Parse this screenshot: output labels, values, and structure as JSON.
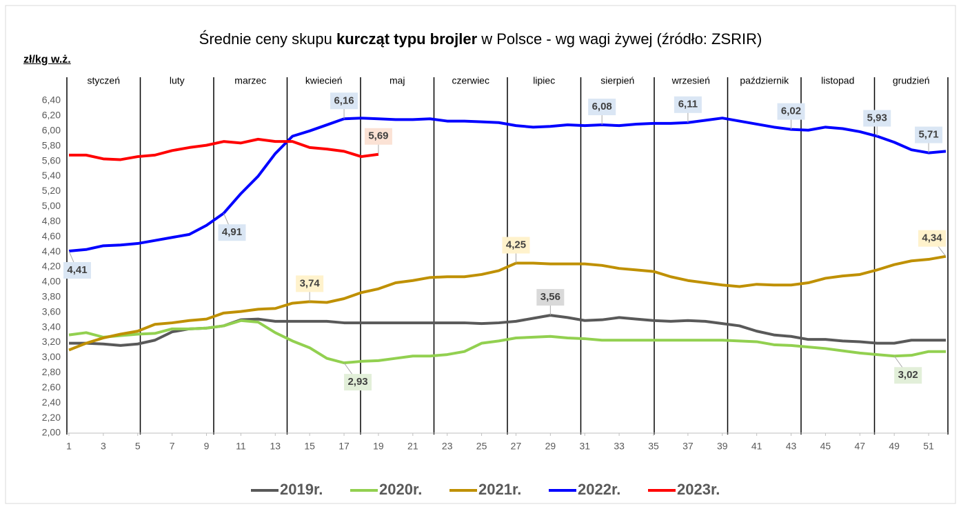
{
  "chart_data": {
    "type": "line",
    "title_parts": [
      "Średnie ceny skupu ",
      "kurcząt typu brojler",
      " w Polsce - wg wagi żywej (źródło: ZSRIR)"
    ],
    "y_label": "zł/kg w.ż.",
    "months": [
      "styczeń",
      "luty",
      "marzec",
      "kwiecień",
      "maj",
      "czerwiec",
      "lipiec",
      "sierpień",
      "wrzesień",
      "październik",
      "listopad",
      "grudzień"
    ],
    "x": [
      1,
      2,
      3,
      4,
      5,
      6,
      7,
      8,
      9,
      10,
      11,
      12,
      13,
      14,
      15,
      16,
      17,
      18,
      19,
      20,
      21,
      22,
      23,
      24,
      25,
      26,
      27,
      28,
      29,
      30,
      31,
      32,
      33,
      34,
      35,
      36,
      37,
      38,
      39,
      40,
      41,
      42,
      43,
      44,
      45,
      46,
      47,
      48,
      49,
      50,
      51,
      52
    ],
    "xlim": [
      1,
      52
    ],
    "xticks": [
      1,
      3,
      5,
      7,
      9,
      11,
      13,
      15,
      17,
      19,
      21,
      23,
      25,
      27,
      29,
      31,
      33,
      35,
      37,
      39,
      41,
      43,
      45,
      47,
      49,
      51
    ],
    "ylim": [
      2,
      6.4
    ],
    "yticks": [
      {
        "value": 2,
        "label": "2,00"
      },
      {
        "value": 2.2,
        "label": "2,20"
      },
      {
        "value": 2.4,
        "label": "2,40"
      },
      {
        "value": 2.6,
        "label": "2,60"
      },
      {
        "value": 2.8,
        "label": "2,80"
      },
      {
        "value": 3,
        "label": "3,00"
      },
      {
        "value": 3.2,
        "label": "3,20"
      },
      {
        "value": 3.4,
        "label": "3,40"
      },
      {
        "value": 3.6,
        "label": "3,60"
      },
      {
        "value": 3.8,
        "label": "3,80"
      },
      {
        "value": 4,
        "label": "4,00"
      },
      {
        "value": 4.2,
        "label": "4,20"
      },
      {
        "value": 4.4,
        "label": "4,40"
      },
      {
        "value": 4.6,
        "label": "4,60"
      },
      {
        "value": 4.8,
        "label": "4,80"
      },
      {
        "value": 5,
        "label": "5,00"
      },
      {
        "value": 5.2,
        "label": "5,20"
      },
      {
        "value": 5.4,
        "label": "5,40"
      },
      {
        "value": 5.6,
        "label": "5,60"
      },
      {
        "value": 5.8,
        "label": "5,80"
      },
      {
        "value": 6,
        "label": "6,00"
      },
      {
        "value": 6.2,
        "label": "6,20"
      },
      {
        "value": 6.4,
        "label": "6,40"
      }
    ],
    "grid": false,
    "legend": "bottom",
    "series": [
      {
        "name": "2019r.",
        "color": "#595959",
        "label_color": "#d9d9d9",
        "values": [
          3.19,
          3.19,
          3.18,
          3.16,
          3.18,
          3.23,
          3.34,
          3.38,
          3.39,
          3.42,
          3.5,
          3.51,
          3.48,
          3.48,
          3.48,
          3.48,
          3.46,
          3.46,
          3.46,
          3.46,
          3.46,
          3.46,
          3.46,
          3.46,
          3.45,
          3.46,
          3.48,
          3.52,
          3.56,
          3.53,
          3.49,
          3.5,
          3.53,
          3.51,
          3.49,
          3.48,
          3.49,
          3.48,
          3.45,
          3.42,
          3.35,
          3.3,
          3.28,
          3.24,
          3.24,
          3.22,
          3.21,
          3.19,
          3.19,
          3.23,
          3.23,
          3.23
        ],
        "value_labels": [
          null,
          null,
          null,
          null,
          null,
          null,
          null,
          null,
          null,
          null,
          null,
          null,
          null,
          null,
          null,
          null,
          null,
          null,
          null,
          null,
          null,
          null,
          null,
          null,
          null,
          null,
          null,
          null,
          "3,56",
          null,
          null,
          null,
          null,
          null,
          null,
          null,
          null,
          null,
          null,
          null,
          null,
          null,
          null,
          null,
          null,
          null,
          null,
          null,
          null,
          null,
          null,
          null
        ]
      },
      {
        "name": "2020r.",
        "color": "#92d050",
        "label_color": "#e2efd9",
        "values": [
          3.3,
          3.33,
          3.27,
          3.29,
          3.31,
          3.32,
          3.38,
          3.38,
          3.39,
          3.42,
          3.49,
          3.47,
          3.33,
          3.22,
          3.13,
          2.99,
          2.93,
          2.95,
          2.96,
          2.99,
          3.02,
          3.02,
          3.04,
          3.08,
          3.19,
          3.22,
          3.26,
          3.27,
          3.28,
          3.26,
          3.25,
          3.23,
          3.23,
          3.23,
          3.23,
          3.23,
          3.23,
          3.23,
          3.23,
          3.22,
          3.21,
          3.17,
          3.16,
          3.14,
          3.12,
          3.09,
          3.06,
          3.04,
          3.02,
          3.03,
          3.08,
          3.08
        ],
        "value_labels": [
          null,
          null,
          null,
          null,
          null,
          null,
          null,
          null,
          null,
          null,
          null,
          null,
          null,
          null,
          null,
          null,
          "2,93",
          null,
          null,
          null,
          null,
          null,
          null,
          null,
          null,
          null,
          null,
          null,
          null,
          null,
          null,
          null,
          null,
          null,
          null,
          null,
          null,
          null,
          null,
          null,
          null,
          null,
          null,
          null,
          null,
          null,
          null,
          null,
          "3,02",
          null,
          null,
          null
        ]
      },
      {
        "name": "2021r.",
        "color": "#bf9000",
        "label_color": "#fff2cc",
        "values": [
          3.1,
          3.19,
          3.26,
          3.31,
          3.35,
          3.44,
          3.46,
          3.49,
          3.51,
          3.59,
          3.61,
          3.64,
          3.65,
          3.72,
          3.74,
          3.73,
          3.78,
          3.86,
          3.91,
          3.99,
          4.02,
          4.06,
          4.07,
          4.07,
          4.1,
          4.15,
          4.25,
          4.25,
          4.24,
          4.24,
          4.24,
          4.22,
          4.18,
          4.16,
          4.14,
          4.07,
          4.02,
          3.99,
          3.96,
          3.94,
          3.97,
          3.96,
          3.96,
          3.99,
          4.05,
          4.08,
          4.1,
          4.16,
          4.23,
          4.28,
          4.3,
          4.34
        ],
        "value_labels": [
          null,
          null,
          null,
          null,
          null,
          null,
          null,
          null,
          null,
          null,
          null,
          null,
          null,
          null,
          "3,74",
          null,
          null,
          null,
          null,
          null,
          null,
          null,
          null,
          null,
          null,
          null,
          "4,25",
          null,
          null,
          null,
          null,
          null,
          null,
          null,
          null,
          null,
          null,
          null,
          null,
          null,
          null,
          null,
          null,
          null,
          null,
          null,
          null,
          null,
          null,
          null,
          null,
          "4,34"
        ]
      },
      {
        "name": "2022r.",
        "color": "#0000ff",
        "label_color": "#dae6f4",
        "values": [
          4.41,
          4.43,
          4.48,
          4.49,
          4.51,
          4.55,
          4.59,
          4.63,
          4.75,
          4.91,
          5.17,
          5.4,
          5.7,
          5.93,
          6,
          6.08,
          6.16,
          6.17,
          6.16,
          6.15,
          6.15,
          6.16,
          6.13,
          6.13,
          6.12,
          6.11,
          6.07,
          6.05,
          6.06,
          6.08,
          6.07,
          6.08,
          6.07,
          6.09,
          6.1,
          6.1,
          6.11,
          6.14,
          6.17,
          6.13,
          6.09,
          6.05,
          6.02,
          6.01,
          6.05,
          6.03,
          5.99,
          5.93,
          5.85,
          5.75,
          5.71,
          5.73
        ],
        "value_labels": [
          "4,41",
          null,
          null,
          null,
          null,
          null,
          null,
          null,
          null,
          "4,91",
          null,
          null,
          null,
          null,
          null,
          null,
          "6,16",
          null,
          null,
          null,
          null,
          null,
          null,
          null,
          null,
          null,
          null,
          null,
          null,
          null,
          null,
          "6,08",
          null,
          null,
          null,
          null,
          "6,11",
          null,
          null,
          null,
          null,
          null,
          "6,02",
          null,
          null,
          null,
          null,
          "5,93",
          null,
          null,
          "5,71",
          null
        ]
      },
      {
        "name": "2023r.",
        "color": "#ff0000",
        "label_color": "#fbe2d5",
        "values": [
          5.68,
          5.68,
          5.63,
          5.62,
          5.66,
          5.68,
          5.74,
          5.78,
          5.81,
          5.86,
          5.84,
          5.89,
          5.86,
          5.86,
          5.78,
          5.76,
          5.73,
          5.66,
          5.69,
          null,
          null,
          null,
          null,
          null,
          null,
          null,
          null,
          null,
          null,
          null,
          null,
          null,
          null,
          null,
          null,
          null,
          null,
          null,
          null,
          null,
          null,
          null,
          null,
          null,
          null,
          null,
          null,
          null,
          null,
          null,
          null,
          null
        ],
        "value_labels": [
          null,
          null,
          null,
          null,
          null,
          null,
          null,
          null,
          null,
          null,
          null,
          null,
          null,
          null,
          null,
          null,
          null,
          null,
          "5,69",
          null,
          null,
          null,
          null,
          null,
          null,
          null,
          null,
          null,
          null,
          null,
          null,
          null,
          null,
          null,
          null,
          null,
          null,
          null,
          null,
          null,
          null,
          null,
          null,
          null,
          null,
          null,
          null,
          null,
          null,
          null,
          null,
          null
        ]
      }
    ]
  }
}
